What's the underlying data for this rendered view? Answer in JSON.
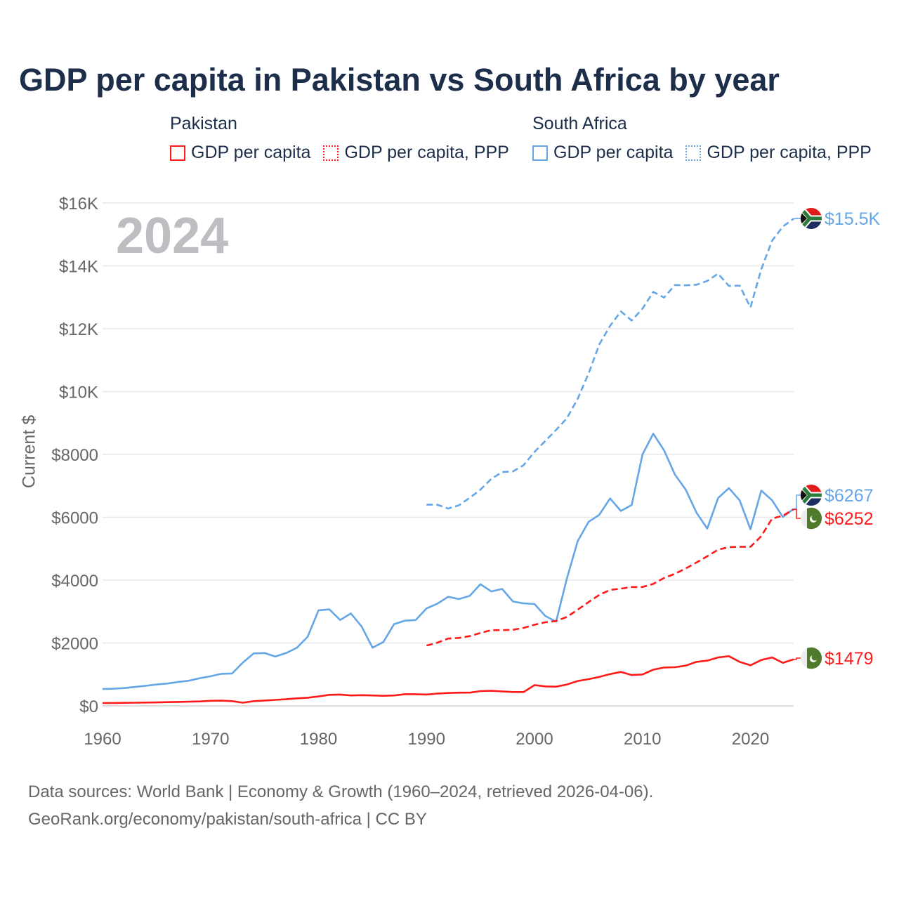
{
  "chart_data": {
    "type": "line",
    "title": "GDP per capita in Pakistan vs South Africa by year",
    "ylabel": "Current $",
    "xlabel": "",
    "xlim": [
      1960,
      2024
    ],
    "ylim": [
      0,
      16000
    ],
    "x_ticks": [
      "1960",
      "1970",
      "1980",
      "1990",
      "2000",
      "2010",
      "2020"
    ],
    "y_ticks": [
      "$0",
      "$2000",
      "$4000",
      "$6000",
      "$8000",
      "$10K",
      "$12K",
      "$14K",
      "$16K"
    ],
    "grid": true,
    "watermark_year": "2024",
    "legend": {
      "groups": [
        {
          "country": "Pakistan",
          "items": [
            "GDP per capita",
            "GDP per capita, PPP"
          ]
        },
        {
          "country": "South Africa",
          "items": [
            "GDP per capita",
            "GDP per capita, PPP"
          ]
        }
      ],
      "placement": "top"
    },
    "colors": {
      "pakistan": "#ff1a1a",
      "south_africa": "#64a6e6",
      "title": "#1c2e4a"
    },
    "series": [
      {
        "name": "South Africa GDP per capita, PPP",
        "country": "South Africa",
        "style": "dashed",
        "color": "#64a6e6",
        "start_year": 1990,
        "end_label": "$15.5K",
        "values": [
          6400,
          6400,
          6280,
          6380,
          6620,
          6880,
          7220,
          7440,
          7460,
          7660,
          8080,
          8430,
          8780,
          9150,
          9770,
          10570,
          11500,
          12090,
          12550,
          12260,
          12640,
          13170,
          12990,
          13390,
          13380,
          13400,
          13520,
          13750,
          13360,
          13370,
          12680,
          13890,
          14800,
          15250,
          15500
        ]
      },
      {
        "name": "South Africa GDP per capita",
        "country": "South Africa",
        "style": "solid",
        "color": "#64a6e6",
        "start_year": 1960,
        "end_label": "$6267",
        "values": [
          536,
          545,
          565,
          600,
          640,
          680,
          710,
          760,
          800,
          880,
          940,
          1020,
          1030,
          1380,
          1670,
          1680,
          1570,
          1680,
          1850,
          2200,
          3040,
          3070,
          2730,
          2940,
          2520,
          1850,
          2030,
          2600,
          2710,
          2730,
          3100,
          3250,
          3470,
          3400,
          3500,
          3870,
          3640,
          3720,
          3320,
          3260,
          3240,
          2860,
          2680,
          4050,
          5240,
          5850,
          6080,
          6600,
          6200,
          6390,
          8000,
          8660,
          8130,
          7360,
          6880,
          6150,
          5640,
          6610,
          6930,
          6540,
          5620,
          6850,
          6540,
          6010,
          6267
        ]
      },
      {
        "name": "Pakistan GDP per capita, PPP",
        "country": "Pakistan",
        "style": "dashed",
        "color": "#ff1a1a",
        "start_year": 1990,
        "end_label": "$6252",
        "values": [
          1920,
          2010,
          2140,
          2160,
          2220,
          2320,
          2410,
          2410,
          2420,
          2480,
          2580,
          2660,
          2700,
          2830,
          3060,
          3300,
          3530,
          3690,
          3730,
          3780,
          3780,
          3880,
          4070,
          4200,
          4370,
          4560,
          4760,
          4970,
          5050,
          5060,
          5060,
          5400,
          5960,
          6050,
          6252
        ]
      },
      {
        "name": "Pakistan GDP per capita",
        "country": "Pakistan",
        "style": "solid",
        "color": "#ff1a1a",
        "start_year": 1960,
        "end_label": "$1479",
        "values": [
          90,
          92,
          95,
          100,
          105,
          110,
          118,
          125,
          132,
          140,
          160,
          165,
          150,
          100,
          150,
          170,
          190,
          210,
          240,
          260,
          300,
          350,
          360,
          330,
          340,
          330,
          320,
          330,
          370,
          370,
          360,
          390,
          410,
          420,
          420,
          470,
          480,
          460,
          440,
          440,
          660,
          620,
          610,
          680,
          790,
          850,
          920,
          1010,
          1080,
          980,
          1000,
          1150,
          1220,
          1230,
          1280,
          1400,
          1440,
          1540,
          1580,
          1400,
          1290,
          1460,
          1540,
          1370,
          1479
        ]
      }
    ],
    "source_lines": [
      "Data sources: World Bank | Economy & Growth (1960–2024, retrieved 2026-04-06).",
      "GeoRank.org/economy/pakistan/south-africa | CC BY"
    ]
  }
}
